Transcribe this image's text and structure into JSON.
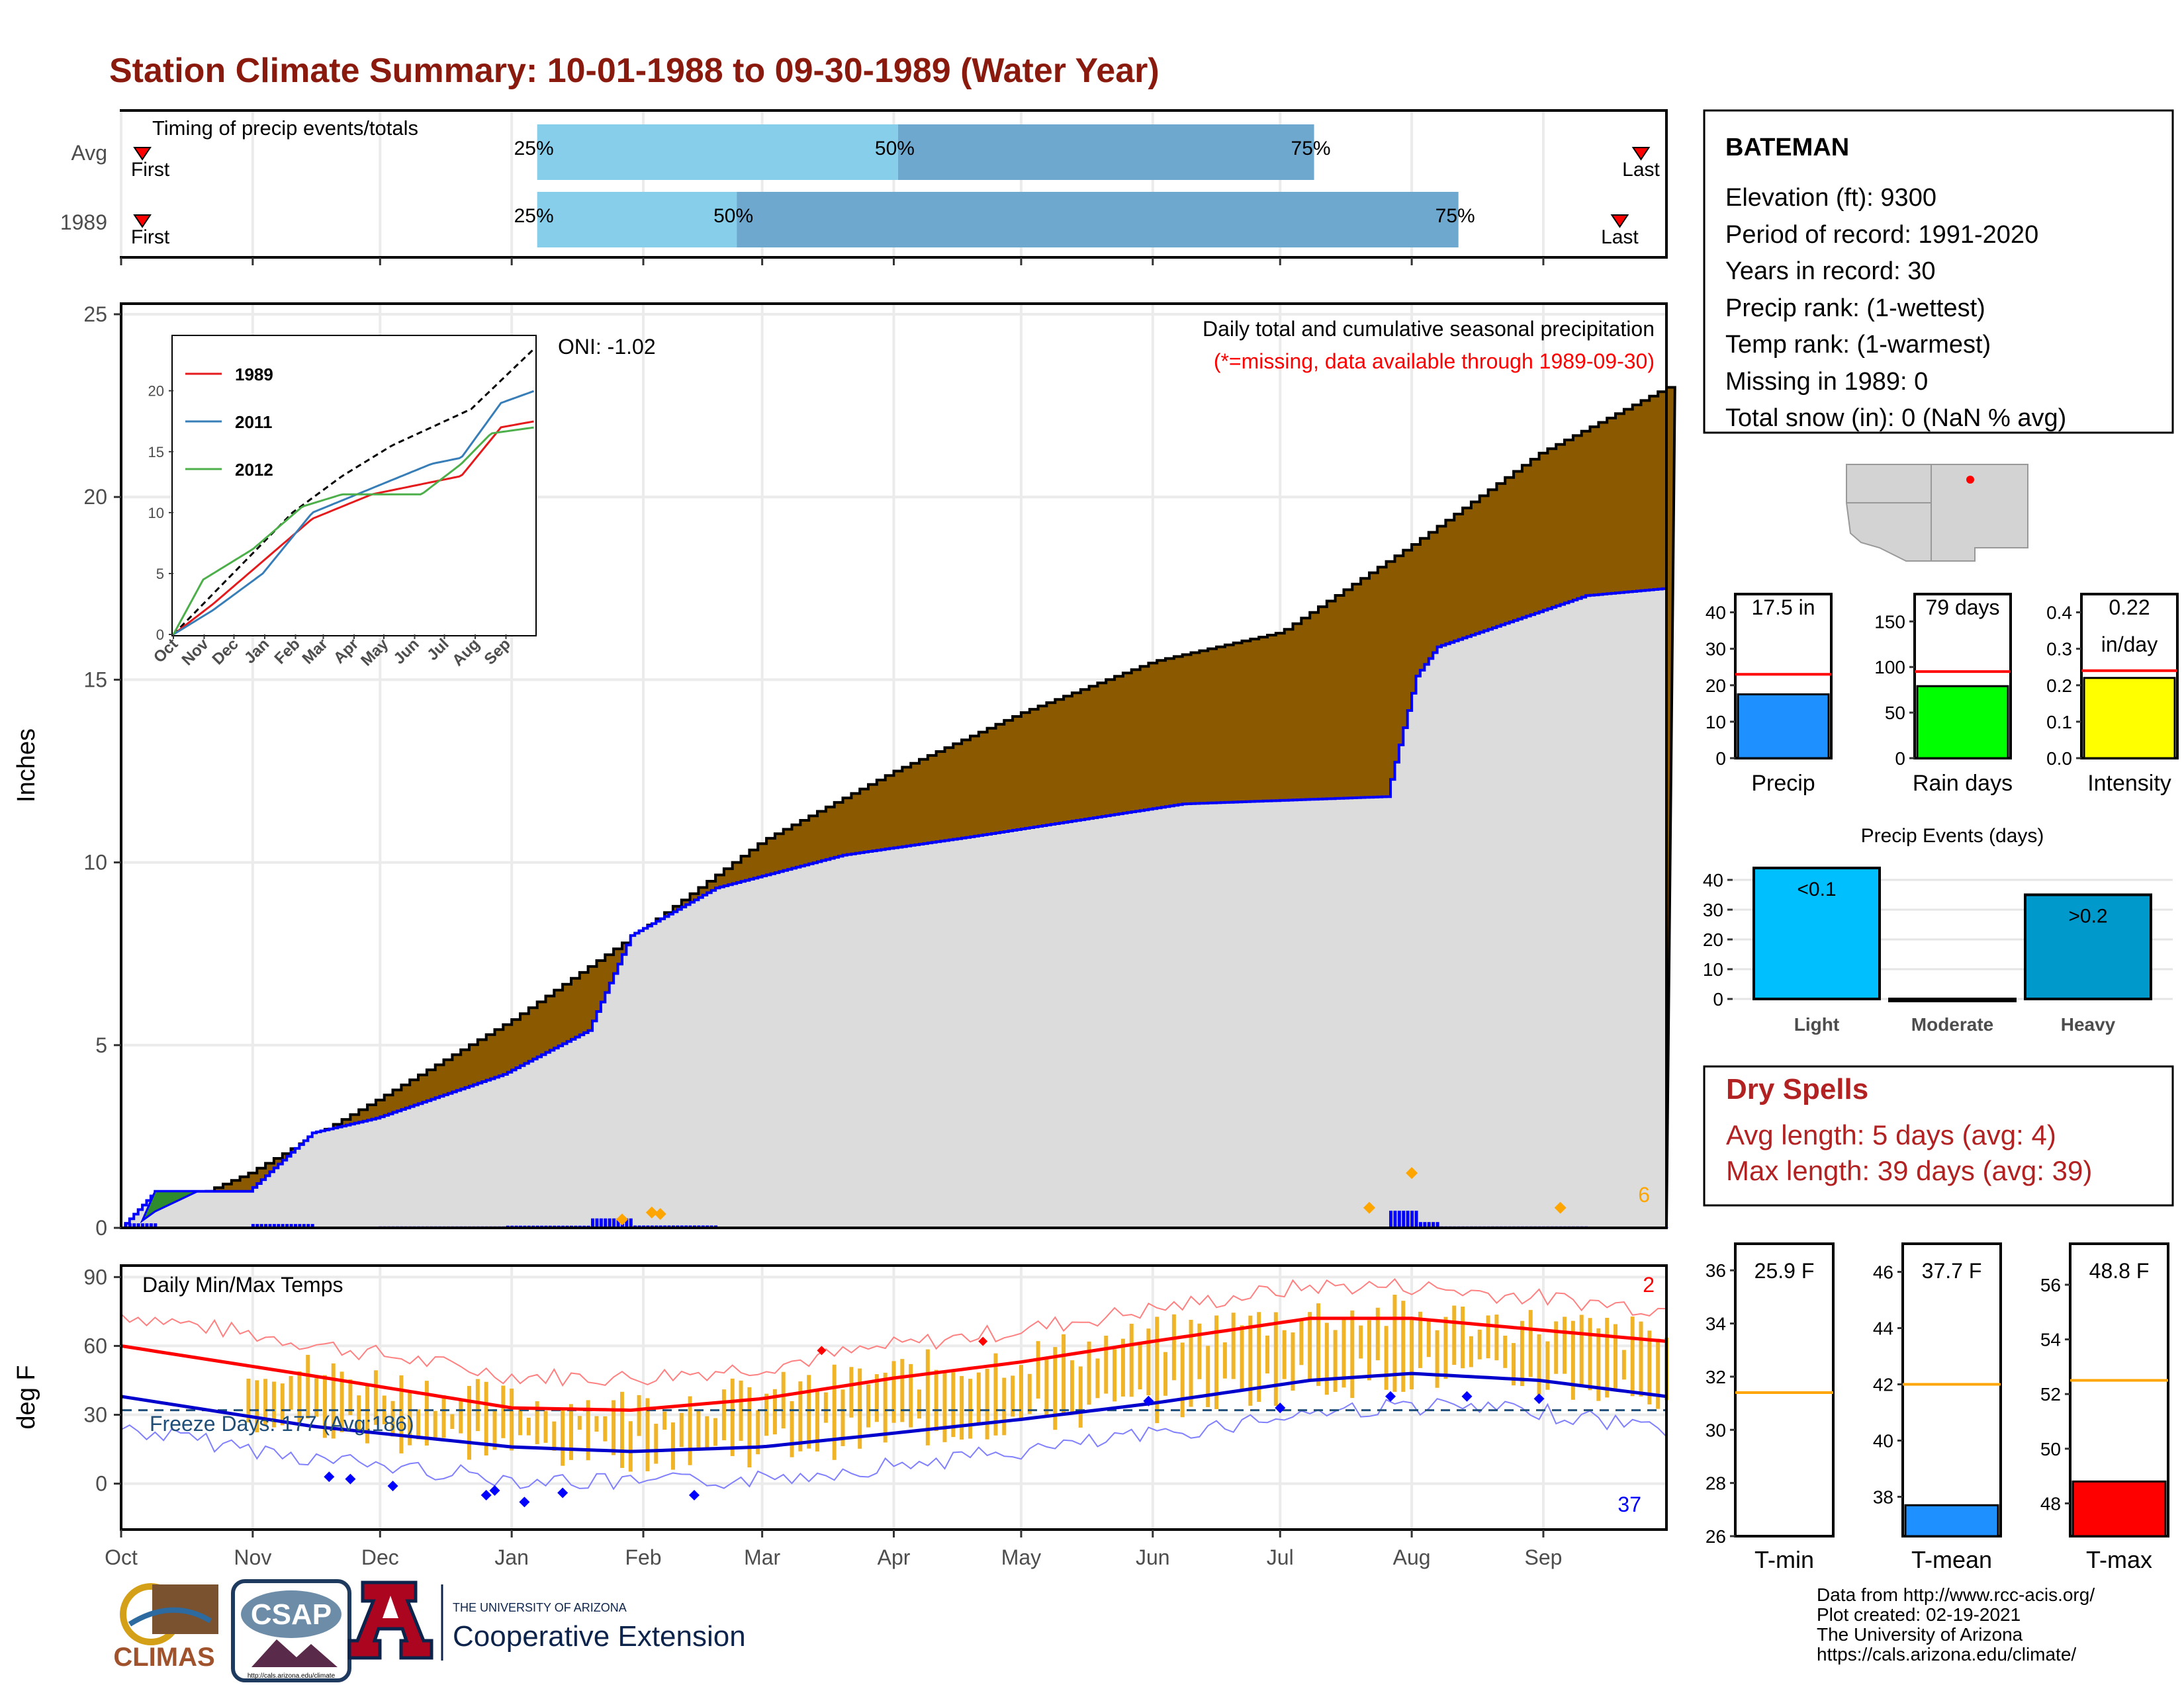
{
  "title": "Station Climate Summary: 10-01-1988 to 09-30-1989 (Water Year)",
  "colors": {
    "title": "#8b1a0e",
    "deficit_fill": "#8b5a00",
    "normal_fill": "#dcdcdc",
    "q_light": "#87ceeb",
    "q_dark": "#6fa8cf",
    "precip_bar": "#0000ff",
    "tmax_line": "#ff0000",
    "tmin_line": "#0000cc",
    "temp_bar": "#f0b428",
    "dry_text": "#b22222",
    "marker_orange": "#ffa500"
  },
  "timing": {
    "label": "Timing of precip events/totals",
    "rows": [
      {
        "name": "Avg",
        "first": "First",
        "last": "Last",
        "p25_label": "25%",
        "p50_label": "50%",
        "p75_label": "75%",
        "first_day": 5,
        "q25_day": 98,
        "q50_day": 183,
        "q75_day": 281,
        "last_day": 358
      },
      {
        "name": "1989",
        "first": "First",
        "last": "Last",
        "p25_label": "25%",
        "p50_label": "50%",
        "p75_label": "75%",
        "first_day": 5,
        "q25_day": 98,
        "q50_day": 145,
        "q75_day": 315,
        "last_day": 353
      }
    ]
  },
  "precip_panel": {
    "ylabel": "Inches",
    "title": "Daily total and cumulative seasonal precipitation",
    "subtitle": "(*=missing, data available through 1989-09-30)",
    "oni": "ONI: -1.02",
    "corner_count": "6",
    "ylim": [
      0,
      25
    ],
    "yticks": [
      "0",
      "5",
      "10",
      "15",
      "20",
      "25"
    ]
  },
  "inset": {
    "xticks": [
      "Oct",
      "Nov",
      "Dec",
      "Jan",
      "Feb",
      "Mar",
      "Apr",
      "May",
      "Jun",
      "Jul",
      "Aug",
      "Sep"
    ],
    "yticks": [
      "0",
      "5",
      "10",
      "15",
      "20"
    ],
    "legend": [
      "1989",
      "2011",
      "2012"
    ]
  },
  "temp_panel": {
    "ylabel": "deg F",
    "title": "Daily Min/Max Temps",
    "freeze": "Freeze Days: 177 (Avg:186)",
    "count_top": "2",
    "count_bottom": "37",
    "yticks": [
      "0",
      "30",
      "60",
      "90"
    ],
    "ylim": [
      -20,
      95
    ]
  },
  "months": [
    "Oct",
    "Nov",
    "Dec",
    "Jan",
    "Feb",
    "Mar",
    "Apr",
    "May",
    "Jun",
    "Jul",
    "Aug",
    "Sep"
  ],
  "station": {
    "name": "BATEMAN",
    "lines": [
      "Elevation (ft): 9300",
      "Period of record: 1991-2020",
      "Years in record: 30",
      "Precip rank:  (1-wettest)",
      "Temp rank:  (1-warmest)",
      "Missing in 1989: 0",
      "Total snow (in): 0 (NaN % avg)"
    ]
  },
  "mini_bars": [
    {
      "label": "Precip",
      "value_text": "17.5 in",
      "value": 17.5,
      "avg": 23,
      "ymax": 45,
      "ticks": [
        "0",
        "10",
        "20",
        "30",
        "40"
      ],
      "tickvals": [
        0,
        10,
        20,
        30,
        40
      ],
      "color": "#1e90ff"
    },
    {
      "label": "Rain days",
      "value_text": "79 days",
      "value": 79,
      "avg": 95,
      "ymax": 180,
      "ticks": [
        "0",
        "50",
        "100",
        "150"
      ],
      "tickvals": [
        0,
        50,
        100,
        150
      ],
      "color": "#00ff00"
    },
    {
      "label": "Intensity",
      "value_text": "0.22",
      "value_text2": "in/day",
      "value": 0.22,
      "avg": 0.24,
      "ymax": 0.45,
      "ticks": [
        "0.0",
        "0.1",
        "0.2",
        "0.3",
        "0.4"
      ],
      "tickvals": [
        0,
        0.1,
        0.2,
        0.3,
        0.4
      ],
      "color": "#ffff00"
    }
  ],
  "events": {
    "title": "Precip Events (days)",
    "ymax": 44,
    "ticks": [
      "0",
      "10",
      "20",
      "30",
      "40"
    ],
    "tickvals": [
      0,
      10,
      20,
      30,
      40
    ],
    "bars": [
      {
        "label": "Light",
        "value": 44,
        "text": "<0.1",
        "color": "#00bfff"
      },
      {
        "label": "Moderate",
        "value": 0,
        "text": "",
        "color": "#1e90ff"
      },
      {
        "label": "Heavy",
        "value": 35,
        "text": ">0.2",
        "color": "#0099cc"
      }
    ]
  },
  "dry_spells": {
    "title": "Dry Spells",
    "avg": "Avg length: 5 days (avg: 4)",
    "max": "Max length: 39 days (avg: 39)"
  },
  "temp_bars": [
    {
      "label": "T-min",
      "value_text": "25.9 F",
      "value": 25.9,
      "avg": 31.4,
      "ymin": 26,
      "ymax": 37,
      "ticks": [
        "26",
        "28",
        "30",
        "32",
        "34",
        "36"
      ],
      "tickvals": [
        26,
        28,
        30,
        32,
        34,
        36
      ],
      "color": "#0000ff"
    },
    {
      "label": "T-mean",
      "value_text": "37.7 F",
      "value": 37.7,
      "avg": 42,
      "ymin": 36.6,
      "ymax": 47,
      "ticks": [
        "38",
        "40",
        "42",
        "44",
        "46"
      ],
      "tickvals": [
        38,
        40,
        42,
        44,
        46
      ],
      "color": "#1e90ff"
    },
    {
      "label": "T-max",
      "value_text": "48.8 F",
      "value": 48.8,
      "avg": 52.5,
      "ymin": 46.8,
      "ymax": 57.5,
      "ticks": [
        "48",
        "50",
        "52",
        "54",
        "56"
      ],
      "tickvals": [
        48,
        50,
        52,
        54,
        56
      ],
      "color": "#ff0000"
    }
  ],
  "credits": [
    "Data from http://www.rcc-acis.org/",
    "Plot created: 02-19-2021",
    "The University of Arizona",
    "https://cals.arizona.edu/climate/"
  ],
  "logos": {
    "climas": "CLIMAS",
    "csap": "CSAP",
    "csap_url": "http://cals.arizona.edu/climate",
    "ua_small": "THE UNIVERSITY OF ARIZONA",
    "ua_big": "Cooperative Extension"
  },
  "chart_data": [
    {
      "type": "area",
      "title": "Daily total and cumulative seasonal precipitation",
      "ylabel": "Inches",
      "xlabel": "",
      "x_unit": "day of water year (0 = Oct 1)",
      "ylim": [
        0,
        25
      ],
      "series": [
        {
          "name": "cumulative normal",
          "x": [
            0,
            30,
            60,
            92,
            123,
            151,
            182,
            212,
            243,
            273,
            304,
            334,
            364
          ],
          "y": [
            0,
            1.5,
            3.5,
            5.7,
            8.2,
            10.6,
            12.5,
            14.1,
            15.5,
            16.3,
            18.7,
            21.2,
            23.0
          ]
        },
        {
          "name": "cumulative 1989",
          "x": [
            0,
            8,
            30,
            45,
            60,
            90,
            110,
            120,
            140,
            170,
            200,
            250,
            298,
            305,
            310,
            345,
            364
          ],
          "y": [
            0,
            1.0,
            1.0,
            2.6,
            3.0,
            4.2,
            5.4,
            8.0,
            9.3,
            10.2,
            10.7,
            11.6,
            11.8,
            15.1,
            15.9,
            17.3,
            17.5
          ]
        }
      ]
    },
    {
      "type": "line",
      "title": "Daily Min/Max Temps",
      "ylabel": "deg F",
      "ylim": [
        -20,
        95
      ],
      "x_unit": "day of water year (0 = Oct 1)",
      "series": [
        {
          "name": "Tmax normal",
          "x": [
            0,
            45,
            92,
            120,
            151,
            182,
            212,
            243,
            280,
            304,
            334,
            364
          ],
          "y": [
            60,
            47,
            33,
            32,
            37,
            46,
            53,
            62,
            72,
            72,
            67,
            62
          ]
        },
        {
          "name": "Tmin normal",
          "x": [
            0,
            45,
            92,
            120,
            151,
            182,
            212,
            243,
            280,
            304,
            334,
            364
          ],
          "y": [
            38,
            25,
            16,
            14,
            16,
            22,
            28,
            35,
            45,
            48,
            45,
            38
          ]
        }
      ]
    }
  ]
}
